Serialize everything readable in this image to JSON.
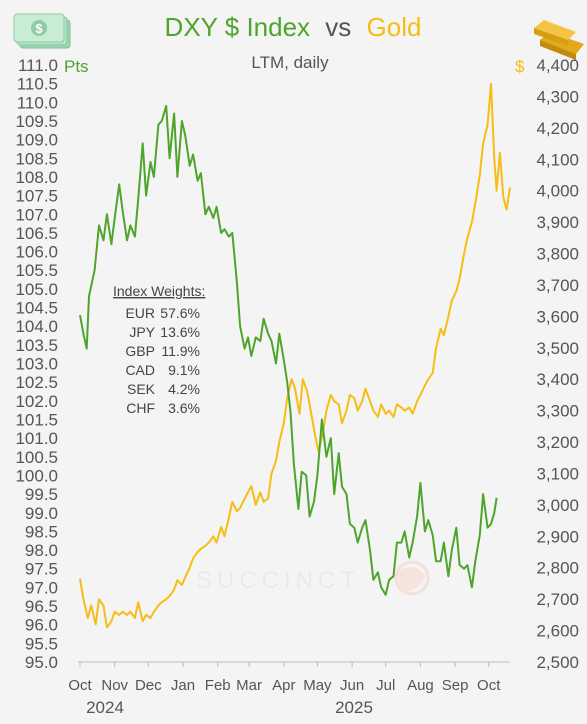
{
  "title": {
    "part1": "DXY $ Index",
    "part2": "vs",
    "part3": "Gold"
  },
  "subtitle": "LTM, daily",
  "left_axis_unit": "Pts",
  "right_axis_unit": "$",
  "watermark": "SUCCINCT",
  "legend_box": {
    "heading": "Index Weights:",
    "rows": [
      {
        "ccy": "EUR",
        "weight": "57.6%"
      },
      {
        "ccy": "JPY",
        "weight": "13.6%"
      },
      {
        "ccy": "GBP",
        "weight": "11.9%"
      },
      {
        "ccy": "CAD",
        "weight": "9.1%"
      },
      {
        "ccy": "SEK",
        "weight": "4.2%"
      },
      {
        "ccy": "CHF",
        "weight": "3.6%"
      }
    ]
  },
  "colors": {
    "dxy": "#4ea52c",
    "gold": "#f6bd16",
    "text": "#555555",
    "axis": "#bbbbbb"
  },
  "icons": {
    "top_left": "dollar-bills-icon",
    "top_right": "gold-bars-icon",
    "watermark": "succinct-logo-icon"
  },
  "chart_data": {
    "type": "line",
    "title": "DXY $ Index vs Gold",
    "subtitle": "LTM, daily",
    "x": {
      "months": [
        "Oct",
        "Nov",
        "Dec",
        "Jan",
        "Feb",
        "Mar",
        "Apr",
        "May",
        "Jun",
        "Jul",
        "Aug",
        "Sep",
        "Oct"
      ],
      "years": [
        "2024",
        "2025"
      ],
      "range": [
        "2024-10-01",
        "2025-10-08"
      ]
    },
    "y_left": {
      "label": "Pts",
      "range": [
        95.0,
        111.0
      ],
      "ticks": [
        "95.0",
        "95.5",
        "96.0",
        "96.5",
        "97.0",
        "97.5",
        "98.0",
        "98.5",
        "99.0",
        "99.5",
        "100.0",
        "100.5",
        "101.0",
        "101.5",
        "102.0",
        "102.5",
        "103.0",
        "103.5",
        "104.0",
        "104.5",
        "105.0",
        "105.5",
        "106.0",
        "106.5",
        "107.0",
        "107.5",
        "108.0",
        "108.5",
        "109.0",
        "109.5",
        "110.0",
        "110.5",
        "111.0"
      ]
    },
    "y_right": {
      "label": "$",
      "range": [
        2500,
        4400
      ],
      "ticks": [
        "2,500",
        "2,600",
        "2,700",
        "2,800",
        "2,900",
        "3,000",
        "3,100",
        "3,200",
        "3,300",
        "3,400",
        "3,500",
        "3,600",
        "3,700",
        "3,800",
        "3,900",
        "4,000",
        "4,100",
        "4,200",
        "4,300",
        "4,400"
      ]
    },
    "series": [
      {
        "name": "DXY $ Index",
        "axis": "left",
        "points": [
          [
            "2024-10-01",
            104.3
          ],
          [
            "2024-10-04",
            103.8
          ],
          [
            "2024-10-07",
            103.4
          ],
          [
            "2024-10-09",
            104.8
          ],
          [
            "2024-10-14",
            105.5
          ],
          [
            "2024-10-18",
            106.7
          ],
          [
            "2024-10-22",
            106.3
          ],
          [
            "2024-10-25",
            107.0
          ],
          [
            "2024-10-29",
            106.2
          ],
          [
            "2024-11-01",
            106.9
          ],
          [
            "2024-11-05",
            107.8
          ],
          [
            "2024-11-08",
            107.1
          ],
          [
            "2024-11-12",
            106.3
          ],
          [
            "2024-11-15",
            106.7
          ],
          [
            "2024-11-19",
            106.4
          ],
          [
            "2024-11-22",
            107.4
          ],
          [
            "2024-11-26",
            108.9
          ],
          [
            "2024-11-29",
            107.5
          ],
          [
            "2024-12-03",
            108.4
          ],
          [
            "2024-12-06",
            108.0
          ],
          [
            "2024-12-10",
            109.4
          ],
          [
            "2024-12-13",
            109.5
          ],
          [
            "2024-12-17",
            109.9
          ],
          [
            "2024-12-20",
            108.5
          ],
          [
            "2024-12-24",
            109.7
          ],
          [
            "2024-12-27",
            108.0
          ],
          [
            "2024-12-31",
            109.5
          ],
          [
            "2025-01-03",
            109.1
          ],
          [
            "2025-01-07",
            108.3
          ],
          [
            "2025-01-10",
            108.6
          ],
          [
            "2025-01-14",
            107.9
          ],
          [
            "2025-01-17",
            108.1
          ],
          [
            "2025-01-21",
            107.0
          ],
          [
            "2025-01-24",
            107.2
          ],
          [
            "2025-01-28",
            106.9
          ],
          [
            "2025-01-31",
            107.2
          ],
          [
            "2025-02-04",
            106.5
          ],
          [
            "2025-02-07",
            106.6
          ],
          [
            "2025-02-11",
            106.4
          ],
          [
            "2025-02-14",
            106.5
          ],
          [
            "2025-02-18",
            105.2
          ],
          [
            "2025-02-21",
            104.0
          ],
          [
            "2025-02-25",
            103.4
          ],
          [
            "2025-02-28",
            103.7
          ],
          [
            "2025-03-03",
            103.2
          ],
          [
            "2025-03-07",
            103.7
          ],
          [
            "2025-03-11",
            103.6
          ],
          [
            "2025-03-14",
            104.2
          ],
          [
            "2025-03-18",
            103.8
          ],
          [
            "2025-03-21",
            103.6
          ],
          [
            "2025-03-25",
            103.0
          ],
          [
            "2025-03-28",
            103.8
          ],
          [
            "2025-04-01",
            103.1
          ],
          [
            "2025-04-04",
            102.5
          ],
          [
            "2025-04-07",
            101.7
          ],
          [
            "2025-04-10",
            100.3
          ],
          [
            "2025-04-14",
            99.1
          ],
          [
            "2025-04-17",
            100.1
          ],
          [
            "2025-04-21",
            100.0
          ],
          [
            "2025-04-24",
            98.9
          ],
          [
            "2025-04-28",
            99.3
          ],
          [
            "2025-05-01",
            100.0
          ],
          [
            "2025-05-05",
            101.5
          ],
          [
            "2025-05-09",
            100.5
          ],
          [
            "2025-05-13",
            101.0
          ],
          [
            "2025-05-16",
            99.5
          ],
          [
            "2025-05-20",
            100.6
          ],
          [
            "2025-05-23",
            99.7
          ],
          [
            "2025-05-27",
            99.5
          ],
          [
            "2025-05-30",
            98.7
          ],
          [
            "2025-06-03",
            98.6
          ],
          [
            "2025-06-06",
            98.2
          ],
          [
            "2025-06-10",
            98.6
          ],
          [
            "2025-06-13",
            98.8
          ],
          [
            "2025-06-17",
            98.0
          ],
          [
            "2025-06-20",
            97.2
          ],
          [
            "2025-06-24",
            97.4
          ],
          [
            "2025-06-27",
            97.0
          ],
          [
            "2025-07-01",
            96.8
          ],
          [
            "2025-07-04",
            97.2
          ],
          [
            "2025-07-08",
            97.3
          ],
          [
            "2025-07-11",
            98.2
          ],
          [
            "2025-07-15",
            98.2
          ],
          [
            "2025-07-18",
            98.5
          ],
          [
            "2025-07-22",
            97.8
          ],
          [
            "2025-07-25",
            98.2
          ],
          [
            "2025-07-29",
            98.9
          ],
          [
            "2025-08-01",
            99.8
          ],
          [
            "2025-08-05",
            98.5
          ],
          [
            "2025-08-08",
            98.8
          ],
          [
            "2025-08-12",
            98.4
          ],
          [
            "2025-08-15",
            97.7
          ],
          [
            "2025-08-19",
            97.7
          ],
          [
            "2025-08-22",
            98.2
          ],
          [
            "2025-08-26",
            97.3
          ],
          [
            "2025-08-29",
            98.0
          ],
          [
            "2025-09-02",
            98.6
          ],
          [
            "2025-09-05",
            97.6
          ],
          [
            "2025-09-09",
            97.5
          ],
          [
            "2025-09-12",
            97.6
          ],
          [
            "2025-09-16",
            97.0
          ],
          [
            "2025-09-19",
            97.7
          ],
          [
            "2025-09-23",
            98.4
          ],
          [
            "2025-09-26",
            99.5
          ],
          [
            "2025-09-30",
            98.6
          ],
          [
            "2025-10-03",
            98.7
          ],
          [
            "2025-10-06",
            99.0
          ],
          [
            "2025-10-08",
            99.4
          ]
        ]
      },
      {
        "name": "Gold",
        "axis": "right",
        "points": [
          [
            "2024-10-01",
            2765
          ],
          [
            "2024-10-04",
            2700
          ],
          [
            "2024-10-08",
            2640
          ],
          [
            "2024-10-11",
            2680
          ],
          [
            "2024-10-15",
            2620
          ],
          [
            "2024-10-18",
            2700
          ],
          [
            "2024-10-22",
            2680
          ],
          [
            "2024-10-25",
            2610
          ],
          [
            "2024-10-29",
            2630
          ],
          [
            "2024-11-01",
            2660
          ],
          [
            "2024-11-05",
            2650
          ],
          [
            "2024-11-08",
            2660
          ],
          [
            "2024-11-12",
            2650
          ],
          [
            "2024-11-15",
            2660
          ],
          [
            "2024-11-19",
            2640
          ],
          [
            "2024-11-22",
            2690
          ],
          [
            "2024-11-26",
            2630
          ],
          [
            "2024-11-29",
            2650
          ],
          [
            "2024-12-03",
            2640
          ],
          [
            "2024-12-06",
            2660
          ],
          [
            "2024-12-10",
            2680
          ],
          [
            "2024-12-13",
            2690
          ],
          [
            "2024-12-17",
            2700
          ],
          [
            "2024-12-20",
            2710
          ],
          [
            "2024-12-24",
            2730
          ],
          [
            "2024-12-27",
            2760
          ],
          [
            "2024-12-31",
            2745
          ],
          [
            "2025-01-03",
            2770
          ],
          [
            "2025-01-07",
            2800
          ],
          [
            "2025-01-10",
            2830
          ],
          [
            "2025-01-14",
            2850
          ],
          [
            "2025-01-17",
            2860
          ],
          [
            "2025-01-21",
            2870
          ],
          [
            "2025-01-24",
            2880
          ],
          [
            "2025-01-28",
            2900
          ],
          [
            "2025-01-31",
            2880
          ],
          [
            "2025-02-04",
            2930
          ],
          [
            "2025-02-07",
            2900
          ],
          [
            "2025-02-11",
            2960
          ],
          [
            "2025-02-14",
            3010
          ],
          [
            "2025-02-18",
            2980
          ],
          [
            "2025-02-21",
            2990
          ],
          [
            "2025-02-25",
            3020
          ],
          [
            "2025-02-28",
            3040
          ],
          [
            "2025-03-03",
            3060
          ],
          [
            "2025-03-07",
            3000
          ],
          [
            "2025-03-11",
            3040
          ],
          [
            "2025-03-14",
            3010
          ],
          [
            "2025-03-18",
            3020
          ],
          [
            "2025-03-21",
            3100
          ],
          [
            "2025-03-25",
            3140
          ],
          [
            "2025-03-28",
            3200
          ],
          [
            "2025-04-01",
            3260
          ],
          [
            "2025-04-04",
            3340
          ],
          [
            "2025-04-08",
            3400
          ],
          [
            "2025-04-11",
            3370
          ],
          [
            "2025-04-15",
            3290
          ],
          [
            "2025-04-18",
            3400
          ],
          [
            "2025-04-22",
            3360
          ],
          [
            "2025-04-25",
            3300
          ],
          [
            "2025-04-29",
            3220
          ],
          [
            "2025-05-02",
            3170
          ],
          [
            "2025-05-06",
            3230
          ],
          [
            "2025-05-09",
            3300
          ],
          [
            "2025-05-13",
            3350
          ],
          [
            "2025-05-16",
            3330
          ],
          [
            "2025-05-20",
            3320
          ],
          [
            "2025-05-23",
            3260
          ],
          [
            "2025-05-27",
            3300
          ],
          [
            "2025-05-30",
            3350
          ],
          [
            "2025-06-03",
            3340
          ],
          [
            "2025-06-06",
            3300
          ],
          [
            "2025-06-10",
            3330
          ],
          [
            "2025-06-13",
            3370
          ],
          [
            "2025-06-17",
            3330
          ],
          [
            "2025-06-20",
            3300
          ],
          [
            "2025-06-24",
            3280
          ],
          [
            "2025-06-27",
            3320
          ],
          [
            "2025-07-01",
            3290
          ],
          [
            "2025-07-04",
            3300
          ],
          [
            "2025-07-08",
            3280
          ],
          [
            "2025-07-11",
            3320
          ],
          [
            "2025-07-15",
            3310
          ],
          [
            "2025-07-18",
            3300
          ],
          [
            "2025-07-22",
            3310
          ],
          [
            "2025-07-25",
            3290
          ],
          [
            "2025-07-29",
            3330
          ],
          [
            "2025-08-01",
            3350
          ],
          [
            "2025-08-05",
            3380
          ],
          [
            "2025-08-08",
            3400
          ],
          [
            "2025-08-12",
            3420
          ],
          [
            "2025-08-15",
            3500
          ],
          [
            "2025-08-19",
            3560
          ],
          [
            "2025-08-22",
            3540
          ],
          [
            "2025-08-26",
            3600
          ],
          [
            "2025-08-29",
            3650
          ],
          [
            "2025-09-02",
            3680
          ],
          [
            "2025-09-05",
            3720
          ],
          [
            "2025-09-09",
            3800
          ],
          [
            "2025-09-12",
            3850
          ],
          [
            "2025-09-16",
            3900
          ],
          [
            "2025-09-19",
            3960
          ],
          [
            "2025-09-23",
            4050
          ],
          [
            "2025-09-26",
            4150
          ],
          [
            "2025-09-30",
            4210
          ],
          [
            "2025-10-03",
            4340
          ],
          [
            "2025-10-06",
            4100
          ],
          [
            "2025-10-08",
            4000
          ],
          [
            "2025-10-11",
            4120
          ],
          [
            "2025-10-14",
            3980
          ],
          [
            "2025-10-17",
            3940
          ],
          [
            "2025-10-20",
            4010
          ]
        ]
      }
    ]
  }
}
